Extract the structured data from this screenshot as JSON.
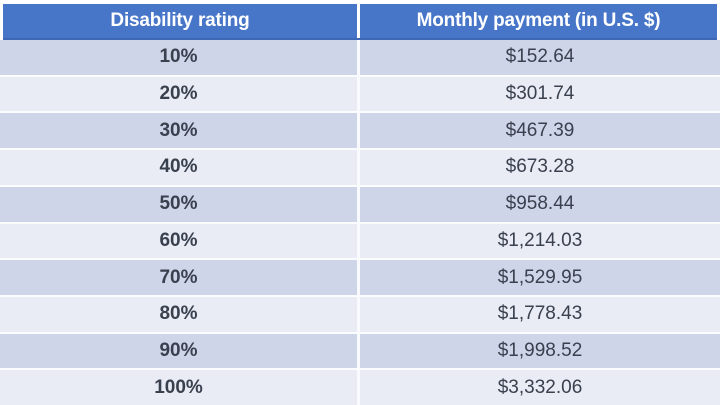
{
  "colors": {
    "header_bg": "#4775c8",
    "header_border": "#3e68b5",
    "header_text": "#ffffff",
    "row_dark": "#cfd5e9",
    "row_light": "#e9ebf5",
    "body_text": "#39404e"
  },
  "chart_data": {
    "type": "table",
    "columns": [
      "Disability rating",
      "Monthly payment (in U.S. $)"
    ],
    "rows": [
      {
        "rating": "10%",
        "payment": "$152.64"
      },
      {
        "rating": "20%",
        "payment": "$301.74"
      },
      {
        "rating": "30%",
        "payment": "$467.39"
      },
      {
        "rating": "40%",
        "payment": "$673.28"
      },
      {
        "rating": "50%",
        "payment": "$958.44"
      },
      {
        "rating": "60%",
        "payment": "$1,214.03"
      },
      {
        "rating": "70%",
        "payment": "$1,529.95"
      },
      {
        "rating": "80%",
        "payment": "$1,778.43"
      },
      {
        "rating": "90%",
        "payment": "$1,998.52"
      },
      {
        "rating": "100%",
        "payment": "$3,332.06"
      }
    ]
  }
}
